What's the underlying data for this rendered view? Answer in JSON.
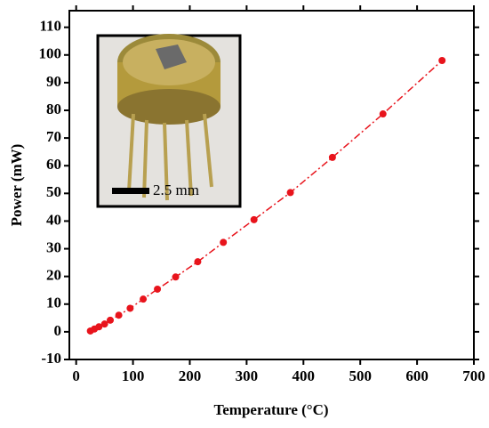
{
  "chart_data": {
    "type": "line",
    "x_label": "Temperature (°C)",
    "y_label": "Power (mW)",
    "inset_label": "2.5 mm",
    "x": [
      25,
      32,
      40,
      50,
      60,
      75,
      95,
      118,
      143,
      175,
      214,
      259,
      313,
      377,
      451,
      540,
      644
    ],
    "series": [
      {
        "color": "#e8141c",
        "values": [
          0.3,
          1,
          1.8,
          2.8,
          4.2,
          6,
          8.5,
          11.8,
          15.4,
          19.8,
          25.3,
          32.3,
          40.5,
          50.3,
          63,
          78.7,
          98
        ]
      }
    ],
    "xlim": [
      -12,
      700
    ],
    "ylim": [
      -10,
      116
    ],
    "xticks": [
      0,
      100,
      200,
      300,
      400,
      500,
      600,
      700
    ],
    "yticks": [
      -10,
      0,
      10,
      20,
      30,
      40,
      50,
      60,
      70,
      80,
      90,
      100,
      110
    ]
  }
}
